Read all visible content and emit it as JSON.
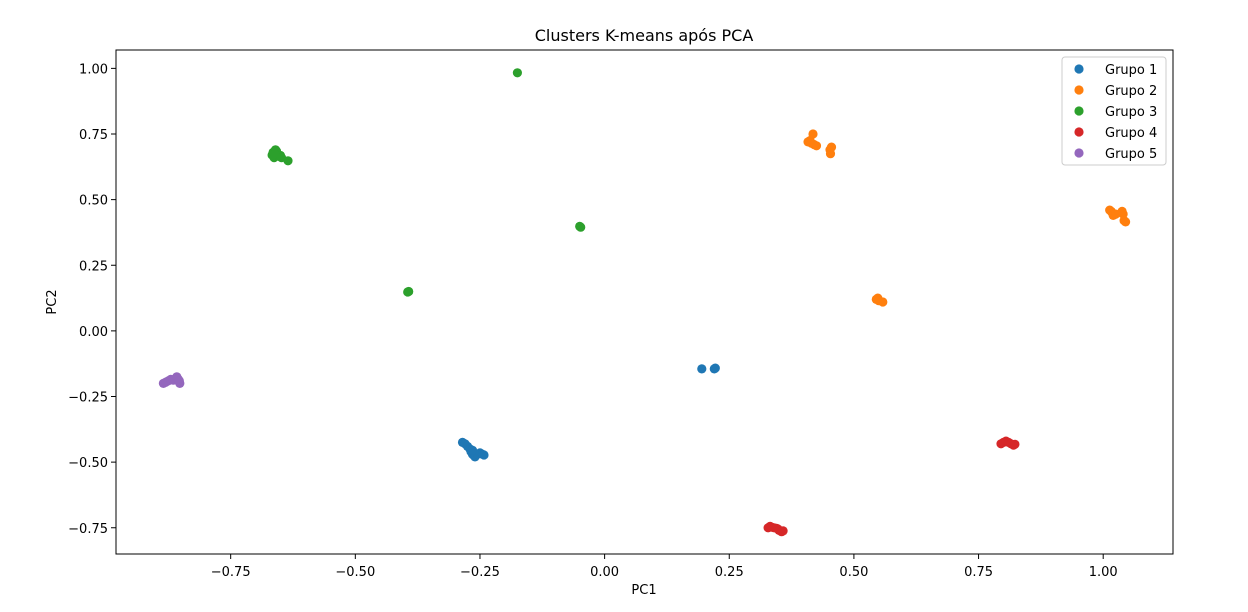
{
  "chart_data": {
    "type": "scatter",
    "title": "Clusters K-means após PCA",
    "xlabel": "PC1",
    "ylabel": "PC2",
    "xlim": [
      -0.98,
      1.14
    ],
    "ylim": [
      -0.85,
      1.07
    ],
    "xticks": [
      -0.75,
      -0.5,
      -0.25,
      0.0,
      0.25,
      0.5,
      0.75,
      1.0
    ],
    "xtick_labels": [
      "−0.75",
      "−0.50",
      "−0.25",
      "0.00",
      "0.25",
      "0.50",
      "0.75",
      "1.00"
    ],
    "yticks": [
      -0.75,
      -0.5,
      -0.25,
      0.0,
      0.25,
      0.5,
      0.75,
      1.0
    ],
    "ytick_labels": [
      "−0.75",
      "−0.50",
      "−0.25",
      "0.00",
      "0.25",
      "0.50",
      "0.75",
      "1.00"
    ],
    "grid": false,
    "legend_position": "top-right",
    "series": [
      {
        "name": "Grupo 1",
        "color": "#1f77b4",
        "points": [
          [
            0.195,
            -0.145
          ],
          [
            0.22,
            -0.145
          ],
          [
            0.222,
            -0.142
          ],
          [
            -0.285,
            -0.425
          ],
          [
            -0.28,
            -0.43
          ],
          [
            -0.275,
            -0.44
          ],
          [
            -0.27,
            -0.45
          ],
          [
            -0.268,
            -0.46
          ],
          [
            -0.265,
            -0.47
          ],
          [
            -0.262,
            -0.475
          ],
          [
            -0.26,
            -0.48
          ],
          [
            -0.255,
            -0.47
          ],
          [
            -0.25,
            -0.465
          ],
          [
            -0.245,
            -0.47
          ],
          [
            -0.242,
            -0.473
          ],
          [
            -0.265,
            -0.455
          ]
        ]
      },
      {
        "name": "Grupo 2",
        "color": "#ff7f0e",
        "points": [
          [
            0.408,
            0.72
          ],
          [
            0.412,
            0.725
          ],
          [
            0.415,
            0.715
          ],
          [
            0.418,
            0.75
          ],
          [
            0.42,
            0.71
          ],
          [
            0.425,
            0.705
          ],
          [
            0.452,
            0.69
          ],
          [
            0.453,
            0.675
          ],
          [
            0.455,
            0.7
          ],
          [
            0.545,
            0.12
          ],
          [
            0.548,
            0.125
          ],
          [
            0.55,
            0.115
          ],
          [
            0.558,
            0.11
          ],
          [
            1.013,
            0.46
          ],
          [
            1.016,
            0.455
          ],
          [
            1.018,
            0.45
          ],
          [
            1.02,
            0.44
          ],
          [
            1.025,
            0.445
          ],
          [
            1.04,
            0.445
          ],
          [
            1.042,
            0.42
          ],
          [
            1.045,
            0.415
          ],
          [
            1.038,
            0.455
          ]
        ]
      },
      {
        "name": "Grupo 3",
        "color": "#2ca02c",
        "points": [
          [
            -0.667,
            0.67
          ],
          [
            -0.665,
            0.68
          ],
          [
            -0.663,
            0.66
          ],
          [
            -0.66,
            0.69
          ],
          [
            -0.658,
            0.685
          ],
          [
            -0.655,
            0.67
          ],
          [
            -0.653,
            0.665
          ],
          [
            -0.65,
            0.668
          ],
          [
            -0.648,
            0.66
          ],
          [
            -0.635,
            0.648
          ],
          [
            -0.662,
            0.675
          ],
          [
            -0.175,
            0.983
          ],
          [
            -0.05,
            0.398
          ],
          [
            -0.048,
            0.395
          ],
          [
            -0.395,
            0.148
          ],
          [
            -0.393,
            0.15
          ]
        ]
      },
      {
        "name": "Grupo 4",
        "color": "#d62728",
        "points": [
          [
            0.328,
            -0.75
          ],
          [
            0.332,
            -0.745
          ],
          [
            0.335,
            -0.748
          ],
          [
            0.34,
            -0.75
          ],
          [
            0.345,
            -0.752
          ],
          [
            0.348,
            -0.755
          ],
          [
            0.35,
            -0.76
          ],
          [
            0.355,
            -0.765
          ],
          [
            0.358,
            -0.762
          ],
          [
            0.795,
            -0.43
          ],
          [
            0.8,
            -0.425
          ],
          [
            0.805,
            -0.42
          ],
          [
            0.81,
            -0.425
          ],
          [
            0.815,
            -0.43
          ],
          [
            0.82,
            -0.435
          ],
          [
            0.823,
            -0.432
          ]
        ]
      },
      {
        "name": "Grupo 5",
        "color": "#9467bd",
        "points": [
          [
            -0.885,
            -0.2
          ],
          [
            -0.88,
            -0.195
          ],
          [
            -0.875,
            -0.19
          ],
          [
            -0.87,
            -0.185
          ],
          [
            -0.865,
            -0.188
          ],
          [
            -0.858,
            -0.175
          ],
          [
            -0.855,
            -0.185
          ],
          [
            -0.852,
            -0.2
          ],
          [
            -0.853,
            -0.19
          ]
        ]
      }
    ]
  }
}
